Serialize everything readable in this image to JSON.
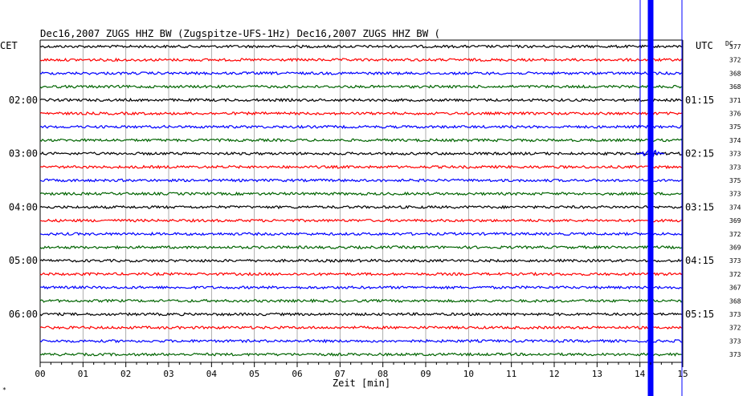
{
  "header": {
    "title": "Dec16,2007   ZUGS HHZ BW (Zugspitze-UFS-1Hz) Dec16,2007   ZUGS HHZ BW (",
    "left_timezone": "CET",
    "right_timezone": "UTC",
    "dc_label": "DC"
  },
  "chart_data": {
    "type": "line",
    "title": "Dec16,2007   ZUGS HHZ BW (Zugspitze-UFS-1Hz) Dec16,2007   ZUGS HHZ BW (",
    "xlabel": "Zeit [min]",
    "xlim": [
      0,
      15
    ],
    "x_ticks": [
      "00",
      "01",
      "02",
      "03",
      "04",
      "05",
      "06",
      "07",
      "08",
      "09",
      "10",
      "11",
      "12",
      "13",
      "14",
      "15"
    ],
    "trace_count": 24,
    "trace_colors": [
      "#000000",
      "#ff0000",
      "#0000ff",
      "#006400"
    ],
    "left_time_labels": [
      {
        "trace": 4,
        "label": "02:00"
      },
      {
        "trace": 8,
        "label": "03:00"
      },
      {
        "trace": 12,
        "label": "04:00"
      },
      {
        "trace": 16,
        "label": "05:00"
      },
      {
        "trace": 20,
        "label": "06:00"
      }
    ],
    "right_time_labels": [
      {
        "trace": 4,
        "label": "01:15"
      },
      {
        "trace": 8,
        "label": "02:15"
      },
      {
        "trace": 12,
        "label": "03:15"
      },
      {
        "trace": 16,
        "label": "04:15"
      },
      {
        "trace": 20,
        "label": "05:15"
      }
    ],
    "dc_values": [
      "377",
      "372",
      "368",
      "368",
      "371",
      "376",
      "375",
      "374",
      "373",
      "373",
      "375",
      "373",
      "374",
      "369",
      "372",
      "369",
      "373",
      "372",
      "367",
      "368",
      "373",
      "372",
      "373",
      "373"
    ],
    "event": {
      "minute": 14.25,
      "trace_start": 6,
      "trace_end": 7,
      "color": "#0000ff"
    },
    "grid": true
  },
  "footer": {
    "corner_mark": "*"
  }
}
